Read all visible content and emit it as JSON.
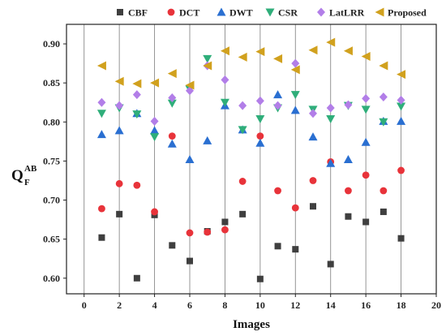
{
  "chart_data": {
    "type": "scatter",
    "title": "",
    "xlabel": "Images",
    "ylabel": "Q",
    "ylabel_sup": "AB",
    "ylabel_sub": "F",
    "xlim": [
      -1,
      20
    ],
    "ylim": [
      0.58,
      0.925
    ],
    "xticks": [
      0,
      2,
      4,
      6,
      8,
      10,
      12,
      14,
      16,
      18,
      20
    ],
    "yticks": [
      0.6,
      0.65,
      0.7,
      0.75,
      0.8,
      0.85,
      0.9
    ],
    "ytick_labels": [
      "0.60",
      "0.65",
      "0.70",
      "0.75",
      "0.80",
      "0.85",
      "0.90"
    ],
    "grid": "vertical",
    "legend_placement": "top",
    "x": [
      1,
      2,
      3,
      4,
      5,
      6,
      7,
      8,
      9,
      10,
      11,
      12,
      13,
      14,
      15,
      16,
      17,
      18
    ],
    "series": [
      {
        "name": "CBF",
        "marker": "square",
        "color": "#3f3f3f",
        "values": [
          0.652,
          0.682,
          0.6,
          0.681,
          0.642,
          0.622,
          0.66,
          0.672,
          0.682,
          0.599,
          0.641,
          0.637,
          0.692,
          0.618,
          0.679,
          0.672,
          0.685,
          0.651
        ]
      },
      {
        "name": "DCT",
        "marker": "circle",
        "color": "#e8333a",
        "values": [
          0.689,
          0.721,
          0.719,
          0.685,
          0.782,
          0.658,
          0.659,
          0.662,
          0.724,
          0.782,
          0.712,
          0.69,
          0.725,
          0.749,
          0.712,
          0.732,
          0.712,
          0.738
        ]
      },
      {
        "name": "DWT",
        "marker": "triangle-up",
        "color": "#2a6fd1",
        "values": [
          0.784,
          0.789,
          0.811,
          0.789,
          0.772,
          0.752,
          0.776,
          0.821,
          0.79,
          0.773,
          0.835,
          0.815,
          0.781,
          0.747,
          0.752,
          0.774,
          0.801,
          0.801
        ]
      },
      {
        "name": "CSR",
        "marker": "triangle-down",
        "color": "#2fae7a",
        "values": [
          0.811,
          0.818,
          0.81,
          0.781,
          0.824,
          0.842,
          0.881,
          0.825,
          0.79,
          0.804,
          0.818,
          0.835,
          0.816,
          0.804,
          0.821,
          0.816,
          0.8,
          0.82
        ]
      },
      {
        "name": "LatLRR",
        "marker": "diamond",
        "color": "#b27ee8",
        "values": [
          0.825,
          0.821,
          0.835,
          0.801,
          0.831,
          0.84,
          0.872,
          0.854,
          0.821,
          0.827,
          0.821,
          0.875,
          0.811,
          0.818,
          0.822,
          0.83,
          0.832,
          0.828
        ]
      },
      {
        "name": "Proposed",
        "marker": "triangle-left",
        "color": "#d1a11e",
        "values": [
          0.872,
          0.852,
          0.849,
          0.85,
          0.862,
          0.847,
          0.872,
          0.891,
          0.883,
          0.89,
          0.881,
          0.867,
          0.892,
          0.902,
          0.891,
          0.884,
          0.872,
          0.861
        ]
      }
    ]
  }
}
